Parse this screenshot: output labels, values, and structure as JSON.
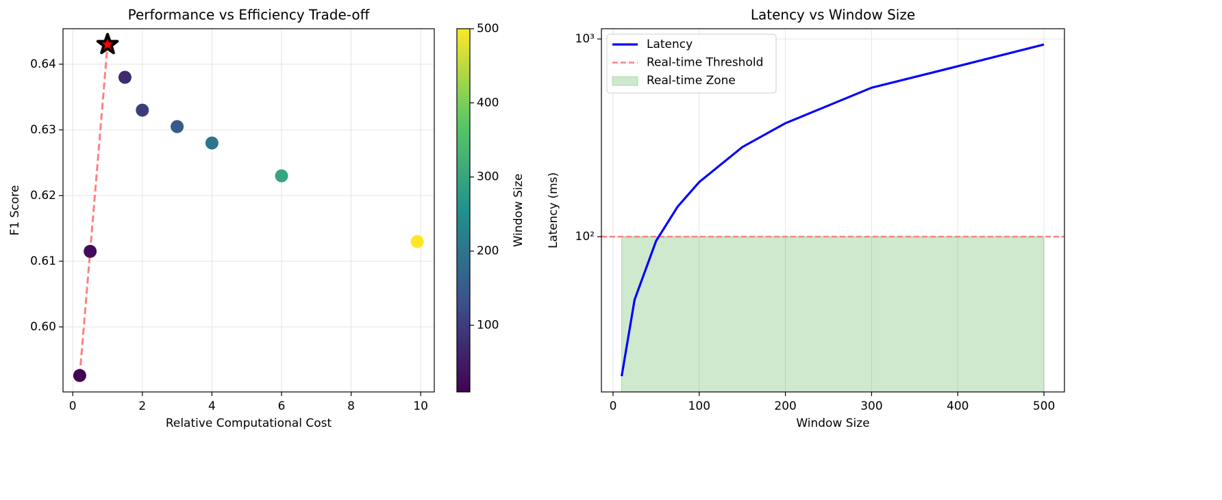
{
  "chart_data": [
    {
      "type": "scatter",
      "title": "Performance vs Efficiency Trade-off",
      "x_label": "Relative Computational Cost",
      "y_label": "F1 Score",
      "x": [
        0.2,
        0.5,
        1.0,
        1.5,
        2.0,
        3.0,
        4.0,
        6.0,
        9.9
      ],
      "y": [
        0.5926,
        0.6115,
        0.643,
        0.638,
        0.633,
        0.6305,
        0.628,
        0.623,
        0.613
      ],
      "c": [
        10,
        25,
        50,
        75,
        100,
        150,
        200,
        300,
        500
      ],
      "colormap": "viridis",
      "colorbar_label": "Window Size",
      "clim": [
        10,
        500
      ],
      "cticks": [
        100,
        200,
        300,
        400,
        500
      ],
      "frontier_indices": [
        0,
        1,
        2
      ],
      "frontier_color": "#ff7f7f",
      "highlight_index": 2,
      "xlim": [
        -0.28,
        10.39
      ],
      "ylim": [
        0.5901,
        0.6454
      ],
      "xticks": [
        0,
        2,
        4,
        6,
        8,
        10
      ],
      "yticks": [
        {
          "value": 0.6,
          "label": "0.60"
        },
        0.61,
        0.62,
        0.63,
        0.64
      ],
      "grid": true
    },
    {
      "type": "line",
      "title": "Latency vs Window Size",
      "x_label": "Window Size",
      "y_label": "Latency (ms)",
      "x": [
        10,
        25,
        50,
        75,
        100,
        150,
        200,
        300,
        400,
        500
      ],
      "series": [
        {
          "name": "Latency",
          "color": "#0000ff",
          "values": [
            19.7,
            48,
            95.3,
            142,
            189,
            284,
            375,
            567,
            728,
            938
          ]
        }
      ],
      "threshold": {
        "name": "Real-time Threshold",
        "value": 100,
        "color": "#ff7f7f"
      },
      "zone": {
        "name": "Real-time Zone",
        "color": "#2ca02c",
        "upper": 100
      },
      "yscale": "log",
      "xlim": [
        -13.5,
        523.8
      ],
      "ylim": [
        16.4,
        1127
      ],
      "xticks": [
        0,
        100,
        200,
        300,
        400,
        500
      ],
      "yticks": [
        {
          "value": 100,
          "label": "10²"
        },
        {
          "value": 1000,
          "label": "10³"
        }
      ],
      "grid": true,
      "legend": "upper left"
    }
  ]
}
